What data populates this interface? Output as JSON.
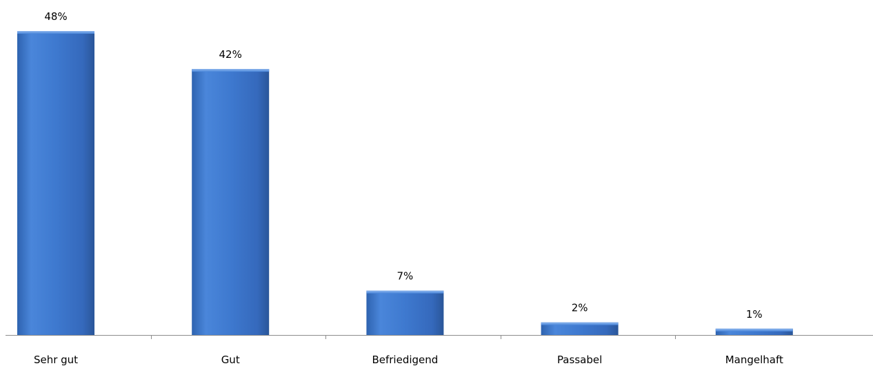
{
  "chart_data": {
    "type": "bar",
    "categories": [
      "Sehr gut",
      "Gut",
      "Befriedigend",
      "Passabel",
      "Mangelhaft"
    ],
    "values": [
      48,
      42,
      7,
      2,
      1
    ],
    "data_labels": [
      "48%",
      "42%",
      "7%",
      "2%",
      "1%"
    ],
    "ylim": [
      0,
      48
    ],
    "grid": false,
    "bar_color": "#3F7FD6",
    "bar_shade_color": "#2B5FA8"
  }
}
